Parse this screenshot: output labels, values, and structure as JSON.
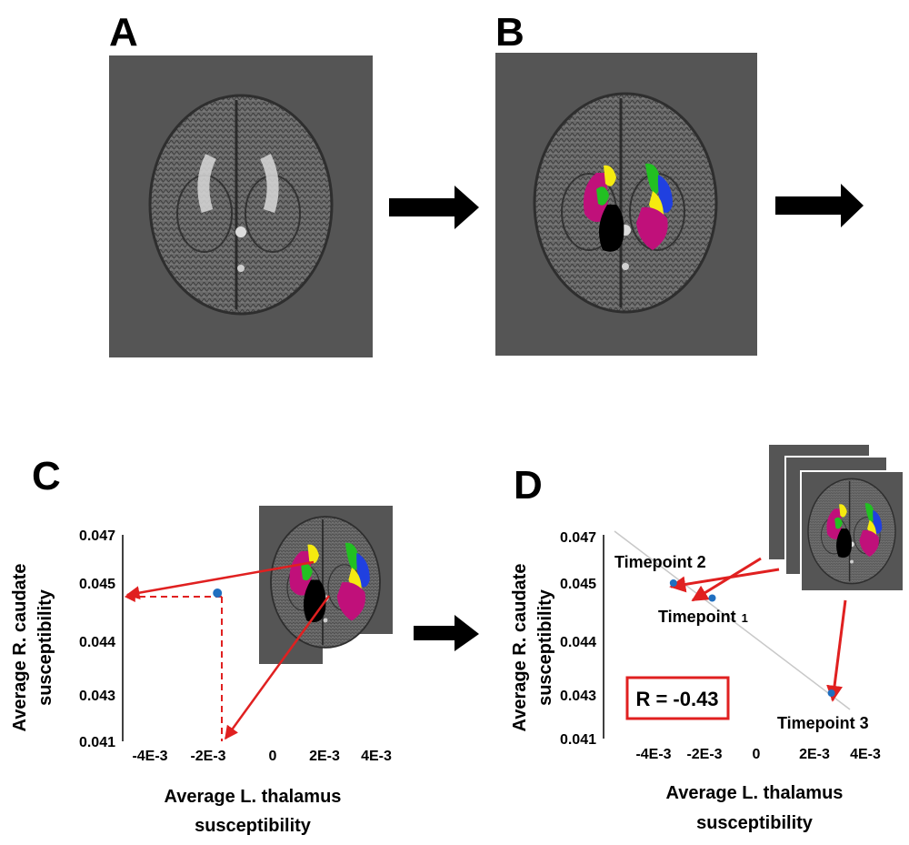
{
  "panels": {
    "a": {
      "label": "A"
    },
    "b": {
      "label": "B"
    },
    "c": {
      "label": "C"
    },
    "d": {
      "label": "D"
    }
  },
  "colors": {
    "scan_bg": "#555555",
    "magenta": "#c0107a",
    "yellow": "#f5ea10",
    "green": "#22c022",
    "blue": "#2040e0",
    "black": "#000000",
    "red": "#e02020",
    "point": "#1f6fc0"
  },
  "chart_data": [
    {
      "id": "C",
      "type": "scatter",
      "x_ticks": [
        "-4E-3",
        "-2E-3",
        "0",
        "2E-3",
        "4E-3"
      ],
      "x_tick_values": [
        -0.004,
        -0.002,
        0,
        0.002,
        0.004
      ],
      "y_ticks": [
        "0.047",
        "0.045",
        "0.044",
        "0.043",
        "0.041"
      ],
      "xlabel_line1": "Average L. thalamus",
      "xlabel_line2": "susceptibility",
      "ylabel_line1": "Average R. caudate",
      "ylabel_line2": "susceptibility",
      "points": [
        {
          "x": -0.0019,
          "y": 0.0448
        }
      ]
    },
    {
      "id": "D",
      "type": "scatter",
      "x_ticks": [
        "-4E-3",
        "-2E-3",
        "0",
        "2E-3",
        "4E-3"
      ],
      "x_tick_values": [
        -0.004,
        -0.002,
        0,
        0.002,
        0.004
      ],
      "y_ticks": [
        "0.047",
        "0.045",
        "0.044",
        "0.043",
        "0.041"
      ],
      "xlabel_line1": "Average L. thalamus",
      "xlabel_line2": "susceptibility",
      "ylabel_line1": "Average R. caudate",
      "ylabel_line2": "susceptibility",
      "points": [
        {
          "label": "Timepoint 2",
          "x": -0.0032,
          "y": 0.045
        },
        {
          "label": "Timepoint",
          "sub": "1",
          "x": -0.0017,
          "y": 0.0447
        },
        {
          "label": "Timepoint 3",
          "x": 0.0029,
          "y": 0.0428
        }
      ],
      "correlation": "R = -0.43"
    }
  ]
}
